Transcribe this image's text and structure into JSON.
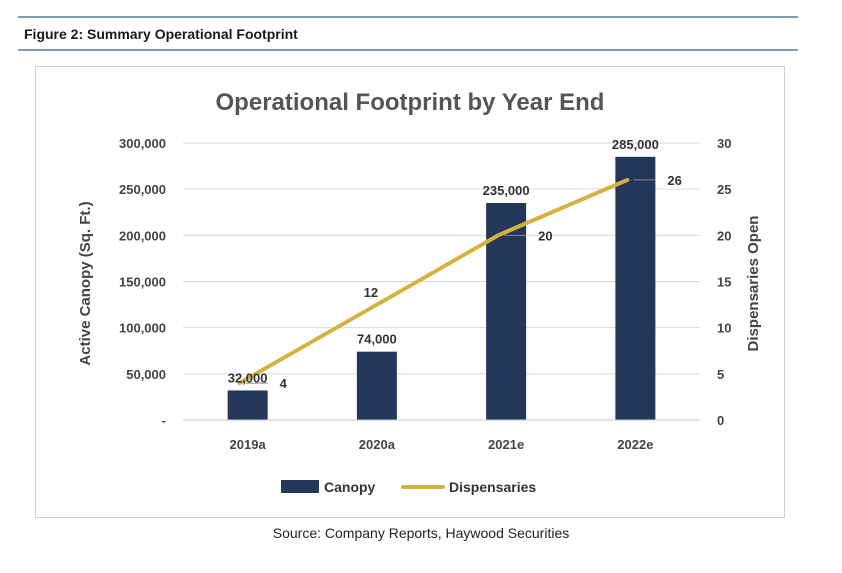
{
  "figure": {
    "caption": "Figure 2: Summary Operational Footprint",
    "source": "Source: Company Reports, Haywood Securities"
  },
  "colors": {
    "canopy": "#24375a",
    "dispensaries": "#d4b23e",
    "rule": "#7f9bb3",
    "grid": "#d9d9d9"
  },
  "chart_data": {
    "type": "bar",
    "title": "Operational Footprint by Year End",
    "categories": [
      "2019a",
      "2020a",
      "2021e",
      "2022e"
    ],
    "y_left": {
      "label": "Active Canopy (Sq. Ft.)",
      "range": [
        0,
        300000
      ],
      "ticks": [
        "-",
        "50,000",
        "100,000",
        "150,000",
        "200,000",
        "250,000",
        "300,000"
      ]
    },
    "y_right": {
      "label": "Dispensaries Open",
      "range": [
        0,
        30
      ],
      "ticks": [
        "0",
        "5",
        "10",
        "15",
        "20",
        "25",
        "30"
      ]
    },
    "series": [
      {
        "name": "Canopy",
        "type": "bar",
        "axis": "left",
        "values": [
          32000,
          74000,
          235000,
          285000
        ],
        "labels": [
          "32,000",
          "74,000",
          "235,000",
          "285,000"
        ]
      },
      {
        "name": "Dispensaries",
        "type": "line",
        "axis": "right",
        "values": [
          4,
          12,
          20,
          26
        ],
        "labels": [
          "4",
          "12",
          "20",
          "26"
        ]
      }
    ],
    "grid": true,
    "legend": "bottom"
  }
}
